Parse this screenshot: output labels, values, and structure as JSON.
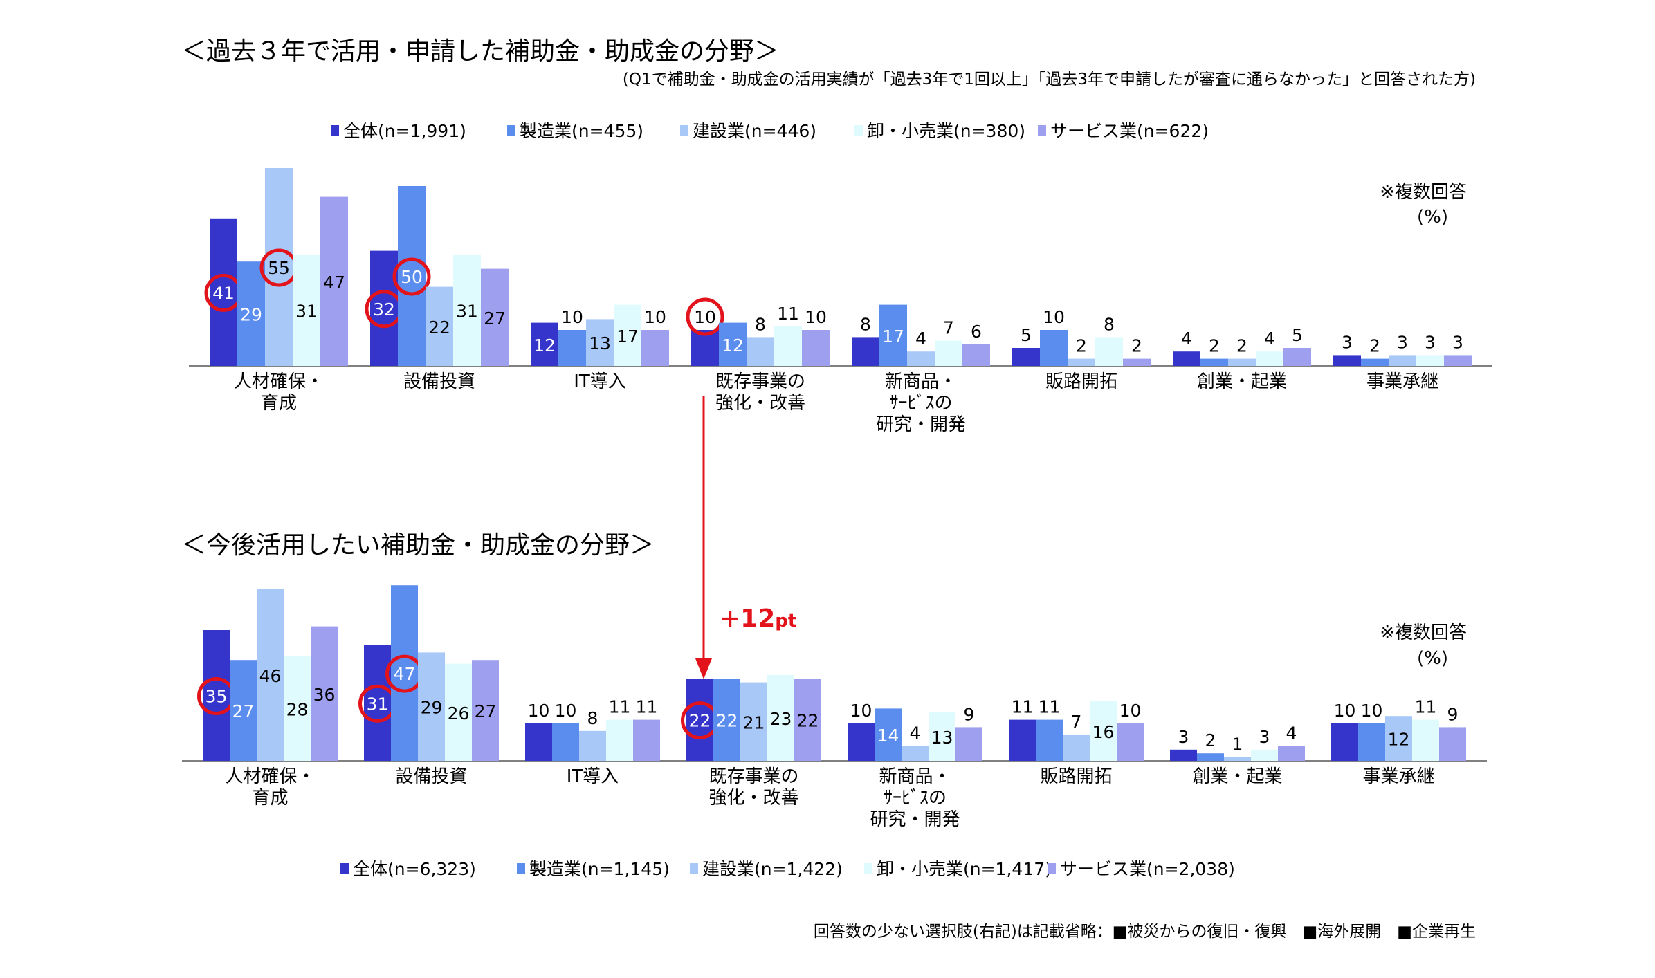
{
  "colors": {
    "series": [
      "#3535CC",
      "#5B8DEF",
      "#A8C9F8",
      "#E0FBFD",
      "#9F9FEF"
    ],
    "highlight": "#E3131B",
    "axis": "#808080"
  },
  "footnote": "回答数の少ない選択肢(右記)は記載省略：■被災からの復旧・復興　■海外展開　■企業再生",
  "arrow": {
    "label_main": "+12",
    "label_unit": "pt"
  },
  "chart_data": [
    {
      "type": "bar",
      "title": "＜過去３年で活用・申請した補助金・助成金の分野＞",
      "subtitle": "(Q1で補助金・助成金の活用実績が「過去3年で1回以上」「過去3年で申請したが審査に通らなかった」と回答された方)",
      "note": "※複数回答",
      "unit": "(%)",
      "legend_position": "top",
      "categories": [
        "人材確保・\n育成",
        "設備投資",
        "IT導入",
        "既存事業の\n強化・改善",
        "新商品・\nｻｰﾋﾞｽの\n研究・開発",
        "販路開拓",
        "創業・起業",
        "事業承継"
      ],
      "series": [
        {
          "name": "全体(n=1,991)",
          "values": [
            41,
            32,
            12,
            10,
            8,
            5,
            4,
            3
          ]
        },
        {
          "name": "製造業(n=455)",
          "values": [
            29,
            50,
            10,
            12,
            17,
            10,
            2,
            2
          ]
        },
        {
          "name": "建設業(n=446)",
          "values": [
            55,
            22,
            13,
            8,
            4,
            2,
            2,
            3
          ]
        },
        {
          "name": "卸・小売業(n=380)",
          "values": [
            31,
            31,
            17,
            11,
            7,
            8,
            4,
            3
          ]
        },
        {
          "name": "サービス業(n=622)",
          "values": [
            47,
            27,
            10,
            10,
            6,
            2,
            5,
            3
          ]
        }
      ],
      "highlighted": [
        [
          0,
          0
        ],
        [
          2,
          0
        ],
        [
          0,
          1
        ],
        [
          1,
          1
        ],
        [
          0,
          3
        ]
      ],
      "ylim": [
        0,
        55
      ]
    },
    {
      "type": "bar",
      "title": "＜今後活用したい補助金・助成金の分野＞",
      "note": "※複数回答",
      "unit": "(%)",
      "legend_position": "bottom",
      "categories": [
        "人材確保・\n育成",
        "設備投資",
        "IT導入",
        "既存事業の\n強化・改善",
        "新商品・\nｻｰﾋﾞｽの\n研究・開発",
        "販路開拓",
        "創業・起業",
        "事業承継"
      ],
      "series": [
        {
          "name": "全体(n=6,323)",
          "values": [
            35,
            31,
            10,
            22,
            10,
            11,
            3,
            10
          ]
        },
        {
          "name": "製造業(n=1,145)",
          "values": [
            27,
            47,
            10,
            22,
            14,
            11,
            2,
            10
          ]
        },
        {
          "name": "建設業(n=1,422)",
          "values": [
            46,
            29,
            8,
            21,
            4,
            7,
            1,
            12
          ]
        },
        {
          "name": "卸・小売業(n=1,417)",
          "values": [
            28,
            26,
            11,
            23,
            13,
            16,
            3,
            11
          ]
        },
        {
          "name": "サービス業(n=2,038)",
          "values": [
            36,
            27,
            11,
            22,
            9,
            10,
            4,
            9
          ]
        }
      ],
      "highlighted": [
        [
          0,
          0
        ],
        [
          0,
          1
        ],
        [
          1,
          1
        ],
        [
          0,
          3
        ]
      ],
      "ylim": [
        0,
        47
      ]
    }
  ]
}
